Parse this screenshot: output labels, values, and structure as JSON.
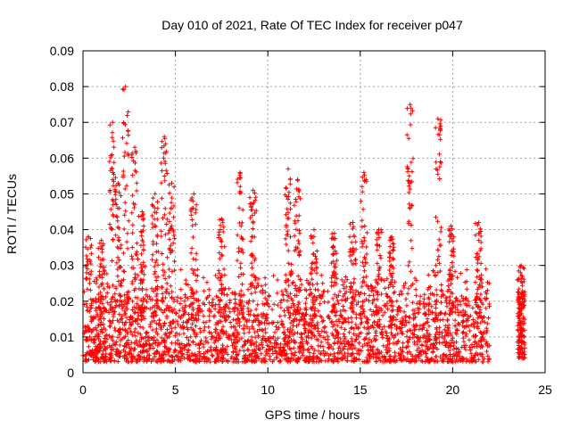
{
  "chart_data": {
    "type": "scatter",
    "title": "Day 010 of 2021, Rate Of TEC Index for receiver p047",
    "xlabel": "GPS time / hours",
    "ylabel": "ROTI / TECUs",
    "xlim": [
      0,
      25
    ],
    "ylim": [
      0,
      0.09
    ],
    "x_ticks": [
      0,
      5,
      10,
      15,
      20,
      25
    ],
    "y_ticks": [
      0,
      0.01,
      0.02,
      0.03,
      0.04,
      0.05,
      0.06,
      0.07,
      0.08,
      0.09
    ],
    "x_tick_labels": [
      "0",
      "5",
      "10",
      "15",
      "20",
      "25"
    ],
    "y_tick_labels": [
      "0",
      "0.01",
      "0.02",
      "0.03",
      "0.04",
      "0.05",
      "0.06",
      "0.07",
      "0.08",
      "0.09"
    ],
    "grid": true,
    "marker": "+",
    "color": "#ff0000",
    "density_bands": [
      {
        "x_start": 0.0,
        "x_end": 22.0,
        "y_low": 0.003,
        "y_high": 0.03,
        "count": 2600
      },
      {
        "x_start": 23.5,
        "x_end": 23.9,
        "y_low": 0.004,
        "y_high": 0.03,
        "count": 120
      }
    ],
    "spikes": [
      {
        "x": 0.3,
        "peak": 0.038
      },
      {
        "x": 1.0,
        "peak": 0.037
      },
      {
        "x": 1.6,
        "peak": 0.07
      },
      {
        "x": 1.9,
        "peak": 0.053
      },
      {
        "x": 2.3,
        "peak": 0.08
      },
      {
        "x": 2.8,
        "peak": 0.063
      },
      {
        "x": 3.2,
        "peak": 0.045
      },
      {
        "x": 3.9,
        "peak": 0.05
      },
      {
        "x": 4.4,
        "peak": 0.066
      },
      {
        "x": 4.8,
        "peak": 0.053
      },
      {
        "x": 6.0,
        "peak": 0.05
      },
      {
        "x": 7.5,
        "peak": 0.043
      },
      {
        "x": 8.5,
        "peak": 0.056
      },
      {
        "x": 9.2,
        "peak": 0.051
      },
      {
        "x": 11.1,
        "peak": 0.057
      },
      {
        "x": 11.6,
        "peak": 0.054
      },
      {
        "x": 12.5,
        "peak": 0.04
      },
      {
        "x": 13.6,
        "peak": 0.039
      },
      {
        "x": 14.6,
        "peak": 0.042
      },
      {
        "x": 15.2,
        "peak": 0.056
      },
      {
        "x": 16.0,
        "peak": 0.04
      },
      {
        "x": 16.7,
        "peak": 0.038
      },
      {
        "x": 17.7,
        "peak": 0.075
      },
      {
        "x": 19.2,
        "peak": 0.071
      },
      {
        "x": 19.9,
        "peak": 0.041
      },
      {
        "x": 21.4,
        "peak": 0.042
      },
      {
        "x": 23.7,
        "peak": 0.03
      }
    ]
  }
}
